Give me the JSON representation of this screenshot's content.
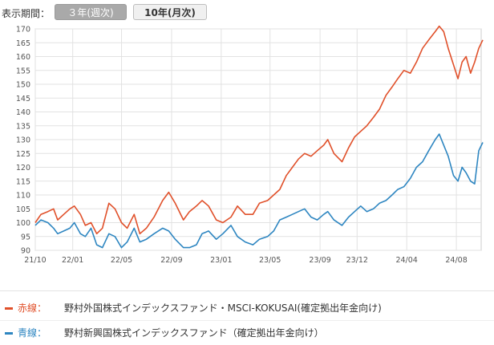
{
  "period_selector": {
    "label": "表示期間：",
    "buttons": [
      {
        "label": "３年(週次)",
        "selected": true
      },
      {
        "label": "10年(月次)",
        "selected": false
      }
    ]
  },
  "legend": [
    {
      "key": "赤線：",
      "name": "野村外国株式インデックスファンド・MSCI-KOKUSAI(確定拠出年金向け)",
      "color": "#e0502a"
    },
    {
      "key": "青線：",
      "name": "野村新興国株式インデックスファンド（確定拠出年金向け）",
      "color": "#2e86c1"
    }
  ],
  "chart_data": {
    "type": "line",
    "xlabel": "",
    "ylabel": "",
    "ylim": [
      90,
      170
    ],
    "xlim": [
      "2021-10-01",
      "2024-10-01"
    ],
    "yticks": [
      90,
      95,
      100,
      105,
      110,
      115,
      120,
      125,
      130,
      135,
      140,
      145,
      150,
      155,
      160,
      165,
      170
    ],
    "xticks": [
      {
        "label": "21/10",
        "date": "2021-10-01"
      },
      {
        "label": "22/01",
        "date": "2022-01-01"
      },
      {
        "label": "22/05",
        "date": "2022-05-01"
      },
      {
        "label": "22/09",
        "date": "2022-09-01"
      },
      {
        "label": "23/01",
        "date": "2023-01-01"
      },
      {
        "label": "23/05",
        "date": "2023-05-01"
      },
      {
        "label": "23/09",
        "date": "2023-09-01"
      },
      {
        "label": "23/12",
        "date": "2023-12-01"
      },
      {
        "label": "24/04",
        "date": "2024-04-01"
      },
      {
        "label": "24/08",
        "date": "2024-08-01"
      }
    ],
    "grid": true,
    "series": [
      {
        "color": "#e0502a",
        "points": [
          [
            "2021-10-01",
            100
          ],
          [
            "2021-10-15",
            103
          ],
          [
            "2021-11-01",
            104
          ],
          [
            "2021-11-15",
            105
          ],
          [
            "2021-11-25",
            101
          ],
          [
            "2021-12-10",
            103
          ],
          [
            "2021-12-25",
            105
          ],
          [
            "2022-01-05",
            106
          ],
          [
            "2022-01-20",
            103
          ],
          [
            "2022-02-01",
            99
          ],
          [
            "2022-02-15",
            100
          ],
          [
            "2022-03-01",
            96
          ],
          [
            "2022-03-15",
            98
          ],
          [
            "2022-03-31",
            107
          ],
          [
            "2022-04-15",
            105
          ],
          [
            "2022-05-01",
            100
          ],
          [
            "2022-05-15",
            98
          ],
          [
            "2022-06-01",
            103
          ],
          [
            "2022-06-15",
            96
          ],
          [
            "2022-07-01",
            98
          ],
          [
            "2022-07-20",
            102
          ],
          [
            "2022-08-10",
            108
          ],
          [
            "2022-08-25",
            111
          ],
          [
            "2022-09-10",
            107
          ],
          [
            "2022-09-30",
            101
          ],
          [
            "2022-10-15",
            104
          ],
          [
            "2022-11-01",
            106
          ],
          [
            "2022-11-15",
            108
          ],
          [
            "2022-12-01",
            106
          ],
          [
            "2022-12-20",
            101
          ],
          [
            "2023-01-05",
            100
          ],
          [
            "2023-01-25",
            102
          ],
          [
            "2023-02-10",
            106
          ],
          [
            "2023-03-01",
            103
          ],
          [
            "2023-03-20",
            103
          ],
          [
            "2023-04-05",
            107
          ],
          [
            "2023-04-25",
            108
          ],
          [
            "2023-05-10",
            110
          ],
          [
            "2023-05-25",
            112
          ],
          [
            "2023-06-10",
            117
          ],
          [
            "2023-06-25",
            120
          ],
          [
            "2023-07-10",
            123
          ],
          [
            "2023-07-25",
            125
          ],
          [
            "2023-08-10",
            124
          ],
          [
            "2023-08-25",
            126
          ],
          [
            "2023-09-10",
            128
          ],
          [
            "2023-09-20",
            130
          ],
          [
            "2023-10-05",
            125
          ],
          [
            "2023-10-25",
            122
          ],
          [
            "2023-11-10",
            127
          ],
          [
            "2023-11-25",
            131
          ],
          [
            "2023-12-10",
            133
          ],
          [
            "2023-12-25",
            135
          ],
          [
            "2024-01-10",
            138
          ],
          [
            "2024-01-25",
            141
          ],
          [
            "2024-02-10",
            146
          ],
          [
            "2024-02-25",
            149
          ],
          [
            "2024-03-10",
            152
          ],
          [
            "2024-03-25",
            155
          ],
          [
            "2024-04-10",
            154
          ],
          [
            "2024-04-25",
            158
          ],
          [
            "2024-05-10",
            163
          ],
          [
            "2024-05-25",
            166
          ],
          [
            "2024-06-10",
            169
          ],
          [
            "2024-06-20",
            171
          ],
          [
            "2024-07-01",
            169
          ],
          [
            "2024-07-12",
            163
          ],
          [
            "2024-07-25",
            157
          ],
          [
            "2024-08-05",
            152
          ],
          [
            "2024-08-15",
            158
          ],
          [
            "2024-08-25",
            160
          ],
          [
            "2024-09-05",
            154
          ],
          [
            "2024-09-15",
            158
          ],
          [
            "2024-09-25",
            163
          ],
          [
            "2024-10-05",
            166
          ]
        ]
      },
      {
        "color": "#2e86c1",
        "points": [
          [
            "2021-10-01",
            99
          ],
          [
            "2021-10-15",
            101
          ],
          [
            "2021-11-01",
            100
          ],
          [
            "2021-11-15",
            98
          ],
          [
            "2021-11-25",
            96
          ],
          [
            "2021-12-10",
            97
          ],
          [
            "2021-12-25",
            98
          ],
          [
            "2022-01-05",
            100
          ],
          [
            "2022-01-20",
            96
          ],
          [
            "2022-02-01",
            95
          ],
          [
            "2022-02-15",
            98
          ],
          [
            "2022-03-01",
            92
          ],
          [
            "2022-03-15",
            91
          ],
          [
            "2022-03-31",
            96
          ],
          [
            "2022-04-15",
            95
          ],
          [
            "2022-05-01",
            91
          ],
          [
            "2022-05-15",
            93
          ],
          [
            "2022-06-01",
            98
          ],
          [
            "2022-06-15",
            93
          ],
          [
            "2022-07-01",
            94
          ],
          [
            "2022-07-20",
            96
          ],
          [
            "2022-08-10",
            98
          ],
          [
            "2022-08-25",
            97
          ],
          [
            "2022-09-10",
            94
          ],
          [
            "2022-09-30",
            91
          ],
          [
            "2022-10-15",
            91
          ],
          [
            "2022-11-01",
            92
          ],
          [
            "2022-11-15",
            96
          ],
          [
            "2022-12-01",
            97
          ],
          [
            "2022-12-20",
            94
          ],
          [
            "2023-01-05",
            96
          ],
          [
            "2023-01-25",
            99
          ],
          [
            "2023-02-10",
            95
          ],
          [
            "2023-03-01",
            93
          ],
          [
            "2023-03-20",
            92
          ],
          [
            "2023-04-05",
            94
          ],
          [
            "2023-04-25",
            95
          ],
          [
            "2023-05-10",
            97
          ],
          [
            "2023-05-25",
            101
          ],
          [
            "2023-06-10",
            102
          ],
          [
            "2023-06-25",
            103
          ],
          [
            "2023-07-10",
            104
          ],
          [
            "2023-07-25",
            105
          ],
          [
            "2023-08-10",
            102
          ],
          [
            "2023-08-25",
            101
          ],
          [
            "2023-09-10",
            103
          ],
          [
            "2023-09-20",
            104
          ],
          [
            "2023-10-05",
            101
          ],
          [
            "2023-10-25",
            99
          ],
          [
            "2023-11-10",
            102
          ],
          [
            "2023-11-25",
            104
          ],
          [
            "2023-12-10",
            106
          ],
          [
            "2023-12-25",
            104
          ],
          [
            "2024-01-10",
            105
          ],
          [
            "2024-01-25",
            107
          ],
          [
            "2024-02-10",
            108
          ],
          [
            "2024-02-25",
            110
          ],
          [
            "2024-03-10",
            112
          ],
          [
            "2024-03-25",
            113
          ],
          [
            "2024-04-10",
            116
          ],
          [
            "2024-04-25",
            120
          ],
          [
            "2024-05-10",
            122
          ],
          [
            "2024-05-25",
            126
          ],
          [
            "2024-06-10",
            130
          ],
          [
            "2024-06-20",
            132
          ],
          [
            "2024-07-01",
            128
          ],
          [
            "2024-07-12",
            124
          ],
          [
            "2024-07-25",
            117
          ],
          [
            "2024-08-05",
            115
          ],
          [
            "2024-08-15",
            120
          ],
          [
            "2024-08-25",
            118
          ],
          [
            "2024-09-05",
            115
          ],
          [
            "2024-09-15",
            114
          ],
          [
            "2024-09-25",
            126
          ],
          [
            "2024-10-05",
            129
          ]
        ]
      }
    ]
  }
}
